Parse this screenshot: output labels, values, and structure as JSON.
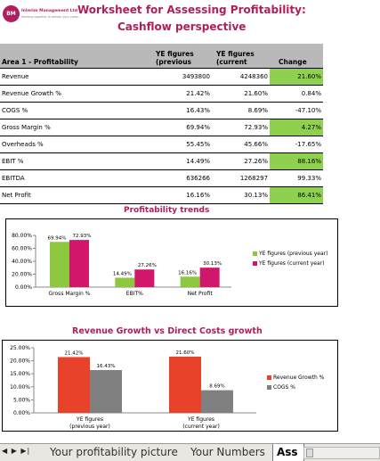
{
  "header": {
    "logo_initials": "BM",
    "logo_name": "Interim Management Ltd",
    "logo_tagline": "Working together to deliver your vision",
    "title_line1": "Worksheet for Assessing Profitability:",
    "title_line2": "Cashflow perspective"
  },
  "table": {
    "headers": {
      "area": "Area 1 - Profitability",
      "prev_line1": "YE figures",
      "prev_line2": "(previous",
      "curr_line1": "YE figures",
      "curr_line2": "(current",
      "change": "Change"
    },
    "rows": [
      {
        "label": "Revenue",
        "prev": "3493800",
        "curr": "4248360",
        "change": "21.60%",
        "highlight": true
      },
      {
        "label": "Revenue Growth %",
        "prev": "21.42%",
        "curr": "21.60%",
        "change": "0.84%",
        "highlight": false
      },
      {
        "label": "COGS %",
        "prev": "16.43%",
        "curr": "8.69%",
        "change": "-47.10%",
        "highlight": false
      },
      {
        "label": "Gross Margin %",
        "prev": "69.94%",
        "curr": "72.93%",
        "change": "4.27%",
        "highlight": true
      },
      {
        "label": "Overheads %",
        "prev": "55.45%",
        "curr": "45.66%",
        "change": "-17.65%",
        "highlight": false
      },
      {
        "label": "EBIT %",
        "prev": "14.49%",
        "curr": "27.26%",
        "change": "88.16%",
        "highlight": true
      },
      {
        "label": "EBITDA",
        "prev": "636266",
        "curr": "1268297",
        "change": "99.33%",
        "highlight": false
      },
      {
        "label": "Net Profit",
        "prev": "16.16%",
        "curr": "30.13%",
        "change": "86.41%",
        "highlight": true
      }
    ]
  },
  "colors": {
    "brand": "#b01e5c",
    "highlight_green": "#8fd14f",
    "header_gray": "#b9b9b9",
    "series_green": "#8dc63f",
    "series_pink": "#d1166b",
    "series_red": "#e8432a",
    "series_gray": "#808080"
  },
  "chart_data": [
    {
      "type": "bar",
      "title": "Profitability trends",
      "categories": [
        "Gross Margin %",
        "EBIT%",
        "Net Profit"
      ],
      "series": [
        {
          "name": "YE figures (previous year)",
          "values": [
            69.94,
            14.49,
            16.16
          ],
          "labels": [
            "69.94%",
            "14.49%",
            "16.16%"
          ],
          "color": "#8dc63f"
        },
        {
          "name": "YE figures (current year)",
          "values": [
            72.93,
            27.26,
            30.13
          ],
          "labels": [
            "72.93%",
            "27.26%",
            "30.13%"
          ],
          "color": "#d1166b"
        }
      ],
      "ylim": [
        0,
        80
      ],
      "yticks": [
        "0.00%",
        "20.00%",
        "40.00%",
        "60.00%",
        "80.00%"
      ],
      "grid": false,
      "legend": "right"
    },
    {
      "type": "bar",
      "title": "Revenue Growth vs Direct Costs growth",
      "categories": [
        "YE figures (previous year)",
        "YE figures (current year)"
      ],
      "category_lines": [
        [
          "YE figures",
          "(previous year)"
        ],
        [
          "YE figures",
          "(current year)"
        ]
      ],
      "series": [
        {
          "name": "Revenue Growth %",
          "values": [
            21.42,
            21.6
          ],
          "labels": [
            "21.42%",
            "21.60%"
          ],
          "color": "#e8432a"
        },
        {
          "name": "COGS %",
          "values": [
            16.43,
            8.69
          ],
          "labels": [
            "16.43%",
            "8.69%"
          ],
          "color": "#808080"
        }
      ],
      "ylim": [
        0,
        25
      ],
      "yticks": [
        "0.00%",
        "5.00%",
        "10.00%",
        "15.00%",
        "20.00%",
        "25.00%"
      ],
      "grid": false,
      "legend": "right"
    }
  ],
  "tabs": {
    "nav_first": "⏮",
    "nav_prev": "◀",
    "nav_next": "▶",
    "nav_last": "⏭",
    "items": [
      "Your profitability picture",
      "Your Numbers",
      "Ass"
    ]
  }
}
